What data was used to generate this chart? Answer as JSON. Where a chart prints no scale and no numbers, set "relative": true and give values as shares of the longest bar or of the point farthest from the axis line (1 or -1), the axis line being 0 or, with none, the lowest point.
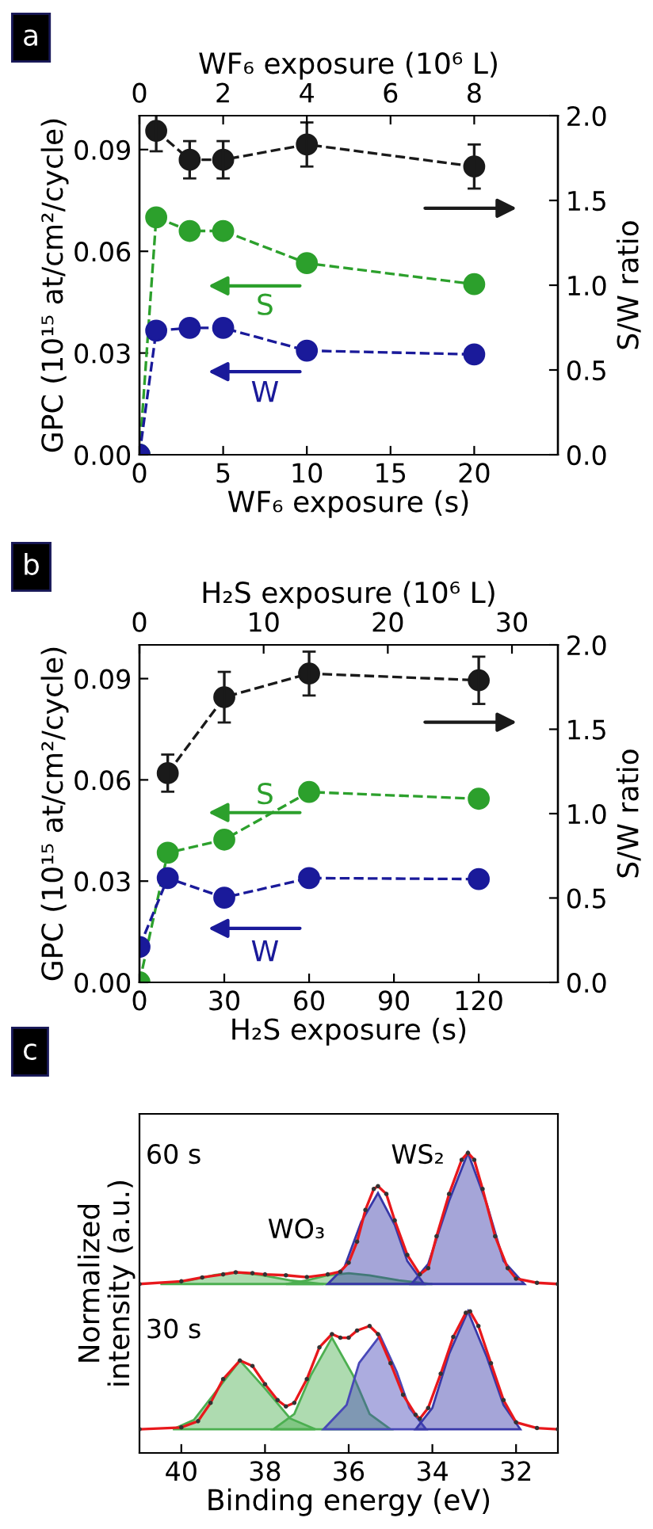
{
  "chart_data": [
    {
      "type": "line",
      "title": "a",
      "xlabel": "WF₆ exposure (s)",
      "x2label": "WF₆ exposure (10⁶ L)",
      "ylabel": "GPC (10¹⁵ at/cm²/cycle)",
      "y2label": "S/W ratio",
      "xlim": [
        0,
        25
      ],
      "xticks": [
        0,
        5,
        10,
        15,
        20
      ],
      "x2lim": [
        0,
        10
      ],
      "x2ticks": [
        0,
        2,
        4,
        6,
        8
      ],
      "ylim": [
        0,
        0.1
      ],
      "yticks": [
        {
          "value": 0,
          "label": "0.00"
        },
        {
          "value": 0.03,
          "label": "0.03"
        },
        {
          "value": 0.06,
          "label": "0.06"
        },
        {
          "value": 0.09,
          "label": "0.09"
        }
      ],
      "y2lim": [
        0,
        2
      ],
      "y2ticks": [
        {
          "value": 0,
          "label": "0.0"
        },
        {
          "value": 0.5,
          "label": "0.5"
        },
        {
          "value": 1,
          "label": "1.0"
        },
        {
          "value": 1.5,
          "label": "1.5"
        },
        {
          "value": 2,
          "label": "2.0"
        }
      ],
      "marker": "circle",
      "line_style": "dashed",
      "legend": "left",
      "series": [
        {
          "color": "#1a1a1a",
          "axis": "y2",
          "x": [
            1,
            3,
            5,
            10,
            20
          ],
          "values": [
            1.91,
            1.74,
            1.74,
            1.83,
            1.7
          ],
          "errors": [
            0.12,
            0.11,
            0.11,
            0.13,
            0.13
          ]
        },
        {
          "name": "S",
          "color": "#2ca02c",
          "x": [
            0,
            1,
            3,
            5,
            10,
            20
          ],
          "values": [
            0,
            0.07,
            0.066,
            0.066,
            0.0565,
            0.0503
          ]
        },
        {
          "name": "W",
          "color": "#1a1a9a",
          "x": [
            0,
            1,
            3,
            5,
            10,
            20
          ],
          "values": [
            0,
            0.0366,
            0.0374,
            0.0374,
            0.0307,
            0.0296
          ]
        }
      ]
    },
    {
      "type": "line",
      "title": "b",
      "xlabel": "H₂S exposure (s)",
      "x2label": "H₂S exposure (10⁶ L)",
      "ylabel": "GPC (10¹⁵ at/cm²/cycle)",
      "y2label": "S/W ratio",
      "xlim": [
        0,
        148
      ],
      "xticks": [
        0,
        30,
        60,
        90,
        120
      ],
      "x2lim": [
        0,
        33.7
      ],
      "x2ticks": [
        0,
        10,
        20,
        30
      ],
      "ylim": [
        0,
        0.1
      ],
      "yticks": [
        {
          "value": 0,
          "label": "0.00"
        },
        {
          "value": 0.03,
          "label": "0.03"
        },
        {
          "value": 0.06,
          "label": "0.06"
        },
        {
          "value": 0.09,
          "label": "0.09"
        }
      ],
      "y2lim": [
        0,
        2
      ],
      "y2ticks": [
        {
          "value": 0,
          "label": "0.0"
        },
        {
          "value": 0.5,
          "label": "0.5"
        },
        {
          "value": 1,
          "label": "1.0"
        },
        {
          "value": 1.5,
          "label": "1.5"
        },
        {
          "value": 2,
          "label": "2.0"
        }
      ],
      "marker": "circle",
      "line_style": "dashed",
      "legend": "left",
      "series": [
        {
          "color": "#1a1a1a",
          "axis": "y2",
          "x": [
            10,
            30,
            60,
            120
          ],
          "values": [
            1.24,
            1.69,
            1.83,
            1.79
          ],
          "errors": [
            0.11,
            0.15,
            0.13,
            0.14
          ]
        },
        {
          "name": "S",
          "color": "#2ca02c",
          "x": [
            0,
            10,
            30,
            60,
            120
          ],
          "values": [
            0,
            0.0384,
            0.0423,
            0.0564,
            0.0544
          ]
        },
        {
          "name": "W",
          "color": "#1a1a9a",
          "x": [
            0,
            10,
            30,
            60,
            120
          ],
          "values": [
            0.0105,
            0.0309,
            0.0251,
            0.0309,
            0.0306
          ]
        }
      ]
    },
    {
      "type": "line",
      "title": "c",
      "xlabel": "Binding energy (eV)",
      "ylabel": "Normalized\nintensity (a.u.)",
      "relative": true,
      "xlim": [
        41,
        31
      ],
      "xticks": [
        40,
        38,
        36,
        34,
        32
      ],
      "annotations": [
        "60 s",
        "30 s",
        "WO₃",
        "WS₂"
      ],
      "series": [
        {
          "type": "area",
          "color": "#4caf50",
          "x": [
            40.5,
            39.8,
            39.2,
            38.7,
            38.1,
            37.4,
            36.6
          ],
          "values": [
            0.563,
            0.575,
            0.593,
            0.602,
            0.593,
            0.575,
            0.563
          ]
        },
        {
          "type": "area",
          "color": "#4caf50",
          "x": [
            37.5,
            37.0,
            36.5,
            36.0,
            35.5,
            34.8,
            34.0
          ],
          "values": [
            0.563,
            0.575,
            0.592,
            0.599,
            0.592,
            0.575,
            0.563
          ]
        },
        {
          "type": "area",
          "color": "#3838a8",
          "x": [
            36.5,
            36.1,
            35.7,
            35.3,
            34.9,
            34.6,
            34.2
          ],
          "values": [
            0.563,
            0.62,
            0.77,
            0.866,
            0.76,
            0.64,
            0.563
          ]
        },
        {
          "type": "area",
          "color": "#3838a8",
          "x": [
            34.5,
            34.1,
            33.6,
            33.15,
            32.7,
            32.3,
            31.8
          ],
          "values": [
            0.563,
            0.63,
            0.84,
            1,
            0.83,
            0.64,
            0.563
          ]
        },
        {
          "type": "area",
          "color": "#4caf50",
          "x": [
            40.2,
            39.7,
            39.2,
            38.6,
            38.0,
            37.4,
            36.8
          ],
          "values": [
            0.079,
            0.11,
            0.2,
            0.308,
            0.215,
            0.115,
            0.079
          ]
        },
        {
          "type": "area",
          "color": "#4caf50",
          "x": [
            37.8,
            37.3,
            36.9,
            36.4,
            35.9,
            35.5,
            35.0
          ],
          "values": [
            0.079,
            0.13,
            0.26,
            0.384,
            0.26,
            0.13,
            0.079
          ]
        },
        {
          "type": "area",
          "color": "#4848b8",
          "x": [
            36.6,
            36.05,
            35.75,
            35.25,
            34.85,
            34.55,
            34.15
          ],
          "values": [
            0.079,
            0.16,
            0.3,
            0.391,
            0.27,
            0.15,
            0.079
          ]
        },
        {
          "type": "area",
          "color": "#3838a8",
          "x": [
            34.4,
            34.0,
            33.6,
            33.15,
            32.7,
            32.3,
            31.9
          ],
          "values": [
            0.079,
            0.15,
            0.33,
            0.472,
            0.32,
            0.16,
            0.079
          ]
        },
        {
          "color": "#e8181c",
          "x": [
            41,
            40,
            39.5,
            39,
            38.7,
            38.3,
            38,
            37.5,
            37,
            36.5,
            36.2,
            36,
            35.8,
            35.6,
            35.4,
            35.3,
            35.1,
            34.9,
            34.6,
            34.3,
            34.1,
            33.9,
            33.6,
            33.3,
            33.15,
            33,
            32.8,
            32.5,
            32.2,
            32,
            31.5,
            31
          ],
          "values": [
            0.563,
            0.572,
            0.585,
            0.595,
            0.602,
            0.599,
            0.595,
            0.592,
            0.586,
            0.595,
            0.604,
            0.634,
            0.704,
            0.81,
            0.88,
            0.889,
            0.863,
            0.775,
            0.66,
            0.595,
            0.616,
            0.722,
            0.863,
            0.977,
            1,
            0.977,
            0.88,
            0.722,
            0.616,
            0.581,
            0.567,
            0.563
          ]
        },
        {
          "color": "#e8181c",
          "x": [
            41,
            40,
            39.6,
            39.3,
            39,
            38.6,
            38.3,
            38,
            37.7,
            37.5,
            37.3,
            37,
            36.7,
            36.4,
            36.2,
            36,
            35.8,
            35.5,
            35.3,
            35,
            34.7,
            34.4,
            34.3,
            34.1,
            33.8,
            33.5,
            33.2,
            33.1,
            32.9,
            32.6,
            32.3,
            32,
            31.5,
            31
          ],
          "values": [
            0.079,
            0.085,
            0.106,
            0.167,
            0.246,
            0.308,
            0.29,
            0.229,
            0.176,
            0.155,
            0.167,
            0.246,
            0.352,
            0.396,
            0.384,
            0.384,
            0.408,
            0.423,
            0.396,
            0.299,
            0.194,
            0.127,
            0.114,
            0.15,
            0.264,
            0.387,
            0.467,
            0.472,
            0.423,
            0.299,
            0.176,
            0.102,
            0.083,
            0.079
          ]
        },
        {
          "type": "scatter",
          "color": "#333333",
          "x": [
            41,
            40,
            39.5,
            39,
            38.7,
            38.3,
            38,
            37.5,
            37,
            36.5,
            36.2,
            36,
            35.8,
            35.6,
            35.4,
            35.3,
            35.1,
            34.9,
            34.6,
            34.3,
            34.1,
            33.9,
            33.6,
            33.3,
            33.15,
            33,
            32.8,
            32.5,
            32.2,
            32,
            31.5,
            31
          ],
          "values": [
            0.563,
            0.572,
            0.585,
            0.595,
            0.602,
            0.599,
            0.595,
            0.592,
            0.586,
            0.595,
            0.604,
            0.634,
            0.704,
            0.81,
            0.88,
            0.889,
            0.863,
            0.775,
            0.66,
            0.595,
            0.616,
            0.722,
            0.863,
            0.977,
            1,
            0.977,
            0.88,
            0.722,
            0.616,
            0.581,
            0.567,
            0.563
          ]
        },
        {
          "type": "scatter",
          "color": "#333333",
          "x": [
            41,
            40,
            39.6,
            39.3,
            39,
            38.6,
            38.3,
            38,
            37.7,
            37.5,
            37.3,
            37,
            36.7,
            36.4,
            36.2,
            36,
            35.8,
            35.5,
            35.3,
            35,
            34.7,
            34.4,
            34.3,
            34.1,
            33.8,
            33.5,
            33.2,
            33.1,
            32.9,
            32.6,
            32.3,
            32,
            31.5,
            31
          ],
          "values": [
            0.079,
            0.085,
            0.106,
            0.167,
            0.246,
            0.308,
            0.29,
            0.229,
            0.176,
            0.155,
            0.167,
            0.246,
            0.352,
            0.396,
            0.384,
            0.384,
            0.408,
            0.423,
            0.396,
            0.299,
            0.194,
            0.127,
            0.114,
            0.15,
            0.264,
            0.387,
            0.467,
            0.472,
            0.423,
            0.299,
            0.176,
            0.102,
            0.083,
            0.079
          ]
        }
      ]
    }
  ]
}
